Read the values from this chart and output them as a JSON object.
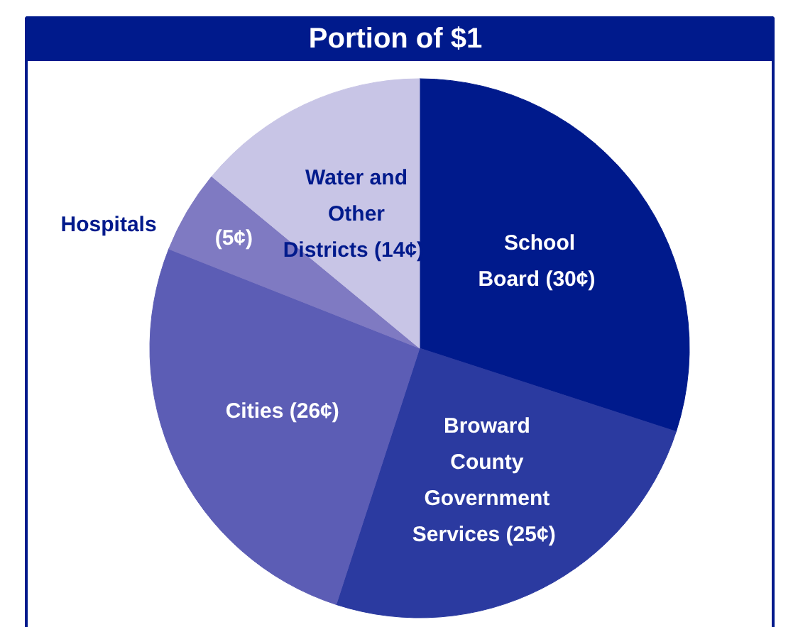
{
  "chart_data": {
    "type": "pie",
    "title": "Portion of $1",
    "categories": [
      "School Board",
      "Broward County Government Services",
      "Cities",
      "Hospitals",
      "Water and Other Districts"
    ],
    "values": [
      30,
      25,
      26,
      5,
      14
    ],
    "value_labels": [
      "(30¢)",
      "(25¢)",
      "(26¢)",
      "(5¢)",
      "(14¢)"
    ],
    "colors": [
      "#001a8c",
      "#2b3aa0",
      "#5c5db5",
      "#7f7ac2",
      "#c8c5e6"
    ]
  }
}
